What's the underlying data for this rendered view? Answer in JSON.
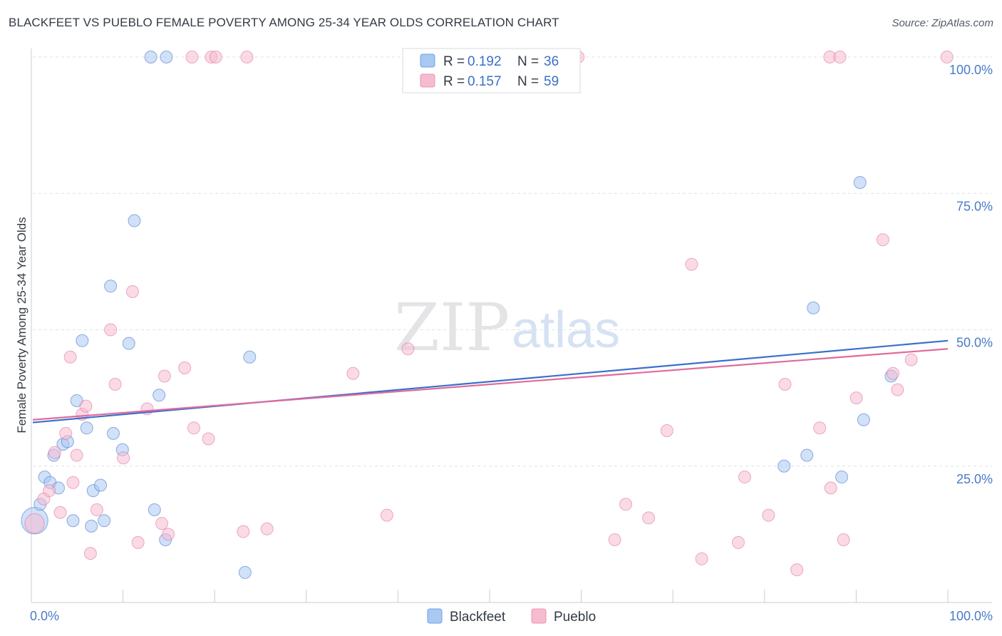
{
  "title": "BLACKFEET VS PUEBLO FEMALE POVERTY AMONG 25-34 YEAR OLDS CORRELATION CHART",
  "source": "Source: ZipAtlas.com",
  "watermark": {
    "zip": "ZIP",
    "atlas": "atlas"
  },
  "chart_data": {
    "type": "scatter",
    "ylabel": "Female Poverty Among 25-34 Year Olds",
    "xlim": [
      0,
      100
    ],
    "ylim": [
      0,
      100
    ],
    "x_tick_labels": [
      "0.0%",
      "100.0%"
    ],
    "y_ticks": [
      {
        "value": 25,
        "label": "25.0%"
      },
      {
        "value": 50,
        "label": "50.0%"
      },
      {
        "value": 75,
        "label": "75.0%"
      },
      {
        "value": 100,
        "label": "100.0%"
      }
    ],
    "grid": true,
    "legend": [
      {
        "name": "Blackfeet",
        "r_label": "R =",
        "r": "0.192",
        "n_label": "N =",
        "n": "36",
        "color": "#6fa0e6"
      },
      {
        "name": "Pueblo",
        "r_label": "R =",
        "r": "0.157",
        "n_label": "N =",
        "n": "59",
        "color": "#f08fb0"
      }
    ],
    "series": [
      {
        "name": "Blackfeet",
        "marker_color": "#a9c8f2",
        "line_color": "#3a70cc",
        "trend": [
          [
            0,
            33
          ],
          [
            100,
            48
          ]
        ],
        "points": [
          [
            0.2,
            15,
            2.2
          ],
          [
            0.8,
            18,
            1
          ],
          [
            1.3,
            23,
            1
          ],
          [
            1.9,
            22,
            1
          ],
          [
            2.3,
            27,
            1
          ],
          [
            2.8,
            21,
            1
          ],
          [
            3.3,
            29,
            1
          ],
          [
            3.8,
            29.5,
            1
          ],
          [
            4.4,
            15,
            1
          ],
          [
            4.8,
            37,
            1
          ],
          [
            5.4,
            48,
            1
          ],
          [
            5.9,
            32,
            1
          ],
          [
            6.4,
            14,
            1
          ],
          [
            6.6,
            20.5,
            1
          ],
          [
            7.4,
            21.5,
            1
          ],
          [
            7.8,
            15,
            1
          ],
          [
            8.5,
            58,
            1
          ],
          [
            8.8,
            31,
            1
          ],
          [
            9.8,
            28,
            1
          ],
          [
            10.5,
            47.5,
            1
          ],
          [
            11.1,
            70,
            1
          ],
          [
            12.9,
            100,
            1
          ],
          [
            13.3,
            17,
            1
          ],
          [
            13.8,
            38,
            1
          ],
          [
            14.5,
            11.5,
            1
          ],
          [
            14.6,
            100,
            1
          ],
          [
            23.2,
            5.5,
            1
          ],
          [
            23.7,
            45,
            1
          ],
          [
            82.1,
            25,
            1
          ],
          [
            84.6,
            27,
            1
          ],
          [
            85.3,
            54,
            1
          ],
          [
            88.4,
            23,
            1
          ],
          [
            90.4,
            77,
            1
          ],
          [
            90.8,
            33.5,
            1
          ],
          [
            93.8,
            41.5,
            1
          ]
        ]
      },
      {
        "name": "Pueblo",
        "marker_color": "#f5bccf",
        "line_color": "#e06b9c",
        "trend": [
          [
            0,
            33.5
          ],
          [
            100,
            46.5
          ]
        ],
        "points": [
          [
            0.2,
            14.5,
            1.6
          ],
          [
            1.2,
            19,
            1
          ],
          [
            1.8,
            20.5,
            1
          ],
          [
            2.4,
            27.5,
            1
          ],
          [
            3.0,
            16.5,
            1
          ],
          [
            3.6,
            31,
            1
          ],
          [
            4.1,
            45,
            1
          ],
          [
            4.4,
            22,
            1
          ],
          [
            4.8,
            27,
            1
          ],
          [
            5.4,
            34.5,
            1
          ],
          [
            5.8,
            36,
            1
          ],
          [
            6.3,
            9,
            1
          ],
          [
            7.0,
            17,
            1
          ],
          [
            8.5,
            50,
            1
          ],
          [
            9.0,
            40,
            1
          ],
          [
            9.9,
            26.5,
            1
          ],
          [
            10.9,
            57,
            1
          ],
          [
            11.5,
            11,
            1
          ],
          [
            12.5,
            35.5,
            1
          ],
          [
            14.1,
            14.5,
            1
          ],
          [
            14.4,
            41.5,
            1
          ],
          [
            14.8,
            12.5,
            1
          ],
          [
            16.6,
            43,
            1
          ],
          [
            17.6,
            32,
            1
          ],
          [
            19.2,
            30,
            1
          ],
          [
            17.4,
            100,
            1
          ],
          [
            19.5,
            100,
            1
          ],
          [
            20.0,
            100,
            1
          ],
          [
            23.4,
            100,
            1
          ],
          [
            23.0,
            13,
            1
          ],
          [
            25.6,
            13.5,
            1
          ],
          [
            35.0,
            42,
            1
          ],
          [
            38.7,
            16,
            1
          ],
          [
            41.0,
            46.5,
            1
          ],
          [
            59.6,
            100,
            1
          ],
          [
            63.6,
            11.5,
            1
          ],
          [
            64.8,
            18,
            1
          ],
          [
            67.3,
            15.5,
            1
          ],
          [
            69.3,
            31.5,
            1
          ],
          [
            72.0,
            62,
            1
          ],
          [
            73.1,
            8,
            1
          ],
          [
            77.1,
            11,
            1
          ],
          [
            77.8,
            23,
            1
          ],
          [
            80.4,
            16,
            1
          ],
          [
            82.2,
            40,
            1
          ],
          [
            83.5,
            6,
            1
          ],
          [
            86.0,
            32,
            1
          ],
          [
            87.2,
            21,
            1
          ],
          [
            88.6,
            11.5,
            1
          ],
          [
            90.0,
            37.5,
            1
          ],
          [
            87.1,
            100,
            1
          ],
          [
            88.2,
            100,
            1
          ],
          [
            92.9,
            66.5,
            1
          ],
          [
            94.0,
            42,
            1
          ],
          [
            94.5,
            39,
            1
          ],
          [
            96.0,
            44.5,
            1
          ],
          [
            99.9,
            100,
            1
          ]
        ]
      }
    ]
  }
}
